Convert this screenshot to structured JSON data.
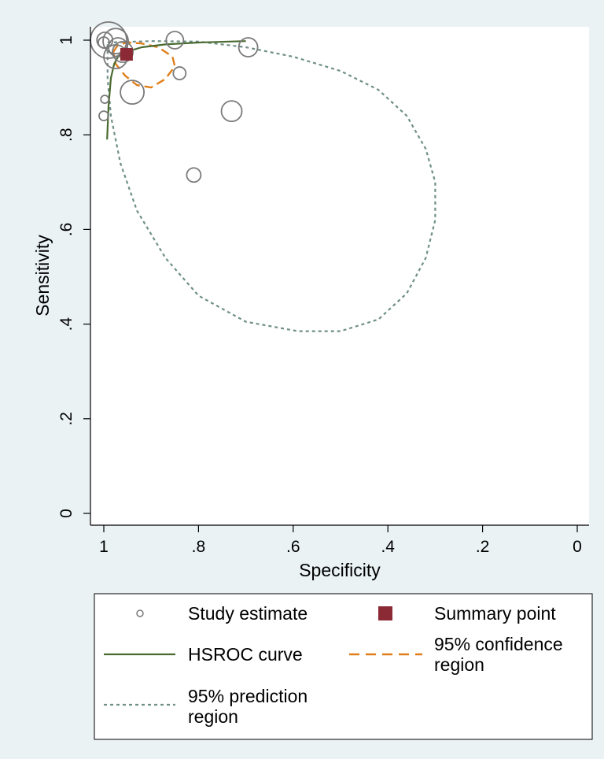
{
  "chart_data": {
    "type": "scatter",
    "xlabel": "Specificity",
    "ylabel": "Sensitivity",
    "x_reversed": true,
    "xlim": [
      1,
      0
    ],
    "ylim": [
      0,
      1
    ],
    "x_ticks": [
      {
        "value": 1,
        "label": "1"
      },
      {
        "value": 0.8,
        "label": ".8"
      },
      {
        "value": 0.6,
        "label": ".6"
      },
      {
        "value": 0.4,
        "label": ".4"
      },
      {
        "value": 0.2,
        "label": ".2"
      },
      {
        "value": 0,
        "label": "0"
      }
    ],
    "y_ticks": [
      {
        "value": 0,
        "label": "0"
      },
      {
        "value": 0.2,
        "label": ".2"
      },
      {
        "value": 0.4,
        "label": ".4"
      },
      {
        "value": 0.6,
        "label": ".6"
      },
      {
        "value": 0.8,
        "label": ".8"
      },
      {
        "value": 1,
        "label": "1"
      }
    ],
    "grid": false,
    "legend_position": "bottom",
    "colors": {
      "plot_background": "#ffffff",
      "outer_background": "#eaf2f3",
      "study": "#7a7a7a",
      "summary": "#8b2a35",
      "hsroc": "#4a6b30",
      "confidence": "#e07f1a",
      "prediction": "#6f8f87"
    },
    "study_estimates": [
      {
        "specificity": 0.99,
        "sensitivity": 1.0,
        "weight": 2.3
      },
      {
        "specificity": 0.998,
        "sensitivity": 1.0,
        "weight": 1.0
      },
      {
        "specificity": 1.0,
        "sensitivity": 0.995,
        "weight": 0.7
      },
      {
        "specificity": 0.975,
        "sensitivity": 0.998,
        "weight": 1.6
      },
      {
        "specificity": 0.97,
        "sensitivity": 0.985,
        "weight": 1.2
      },
      {
        "specificity": 0.96,
        "sensitivity": 0.975,
        "weight": 1.3
      },
      {
        "specificity": 0.975,
        "sensitivity": 0.965,
        "weight": 1.5
      },
      {
        "specificity": 0.85,
        "sensitivity": 1.0,
        "weight": 1.1
      },
      {
        "specificity": 0.695,
        "sensitivity": 0.985,
        "weight": 1.2
      },
      {
        "specificity": 0.94,
        "sensitivity": 0.89,
        "weight": 1.5
      },
      {
        "specificity": 0.84,
        "sensitivity": 0.93,
        "weight": 0.8
      },
      {
        "specificity": 0.998,
        "sensitivity": 0.875,
        "weight": 0.5
      },
      {
        "specificity": 1.0,
        "sensitivity": 0.84,
        "weight": 0.6
      },
      {
        "specificity": 0.73,
        "sensitivity": 0.85,
        "weight": 1.3
      },
      {
        "specificity": 0.81,
        "sensitivity": 0.715,
        "weight": 0.9
      }
    ],
    "summary_point": {
      "specificity": 0.952,
      "sensitivity": 0.97
    },
    "hsroc_curve": [
      [
        0.993,
        0.79
      ],
      [
        0.99,
        0.86
      ],
      [
        0.985,
        0.92
      ],
      [
        0.978,
        0.95
      ],
      [
        0.97,
        0.965
      ],
      [
        0.95,
        0.976
      ],
      [
        0.92,
        0.985
      ],
      [
        0.87,
        0.991
      ],
      [
        0.8,
        0.995
      ],
      [
        0.7,
        0.998
      ]
    ],
    "confidence_region": [
      [
        0.98,
        0.975
      ],
      [
        0.97,
        0.99
      ],
      [
        0.95,
        0.995
      ],
      [
        0.92,
        0.993
      ],
      [
        0.885,
        0.985
      ],
      [
        0.855,
        0.965
      ],
      [
        0.85,
        0.945
      ],
      [
        0.87,
        0.918
      ],
      [
        0.9,
        0.9
      ],
      [
        0.93,
        0.905
      ],
      [
        0.955,
        0.925
      ],
      [
        0.975,
        0.95
      ],
      [
        0.98,
        0.975
      ]
    ],
    "prediction_region": [
      [
        0.992,
        0.995
      ],
      [
        0.9,
        0.998
      ],
      [
        0.8,
        0.997
      ],
      [
        0.7,
        0.985
      ],
      [
        0.6,
        0.965
      ],
      [
        0.5,
        0.935
      ],
      [
        0.42,
        0.895
      ],
      [
        0.36,
        0.84
      ],
      [
        0.32,
        0.77
      ],
      [
        0.3,
        0.7
      ],
      [
        0.3,
        0.62
      ],
      [
        0.32,
        0.54
      ],
      [
        0.36,
        0.465
      ],
      [
        0.42,
        0.41
      ],
      [
        0.5,
        0.385
      ],
      [
        0.59,
        0.385
      ],
      [
        0.7,
        0.405
      ],
      [
        0.8,
        0.46
      ],
      [
        0.87,
        0.54
      ],
      [
        0.93,
        0.64
      ],
      [
        0.965,
        0.74
      ],
      [
        0.985,
        0.84
      ],
      [
        0.992,
        0.92
      ],
      [
        0.992,
        0.995
      ]
    ],
    "legend": [
      {
        "key": "study",
        "label": "Study estimate"
      },
      {
        "key": "summary",
        "label": "Summary point"
      },
      {
        "key": "hsroc",
        "label": "HSROC curve"
      },
      {
        "key": "confidence",
        "label": "95% confidence region"
      },
      {
        "key": "prediction",
        "label": "95% prediction region"
      }
    ]
  }
}
